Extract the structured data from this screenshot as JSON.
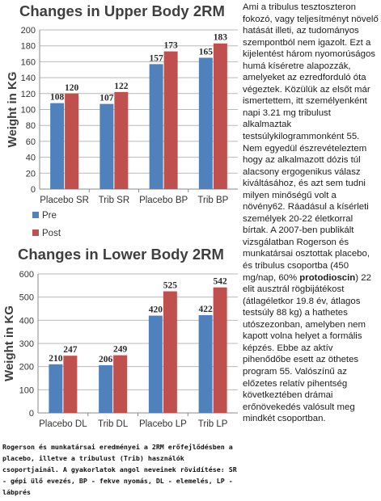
{
  "chart_data": [
    {
      "type": "bar",
      "title": "Changes in Upper Body 2RM",
      "ylabel": "Weight in KG",
      "xlabel": "",
      "categories": [
        "Placebo SR",
        "Trib SR",
        "Placebo BP",
        "Trib BP"
      ],
      "ylim": [
        0,
        200
      ],
      "yticks": [
        0,
        20,
        40,
        60,
        80,
        100,
        120,
        140,
        160,
        180,
        200
      ],
      "grid": true,
      "legend": "bottom-left",
      "series": [
        {
          "name": "Pre",
          "color": "#4f81bd",
          "values": [
            108,
            107,
            157,
            165
          ]
        },
        {
          "name": "Post",
          "color": "#c0504d",
          "values": [
            120,
            122,
            173,
            183
          ]
        }
      ]
    },
    {
      "type": "bar",
      "title": "Changes in Lower Body 2RM",
      "ylabel": "Weight in KG",
      "xlabel": "",
      "categories": [
        "Placebo DL",
        "Trib DL",
        "Placebo LP",
        "Trib LP"
      ],
      "ylim": [
        0,
        600
      ],
      "yticks": [
        0,
        100,
        200,
        300,
        400,
        500,
        600
      ],
      "grid": true,
      "series": [
        {
          "name": "Pre",
          "color": "#4f81bd",
          "values": [
            210,
            206,
            420,
            422
          ]
        },
        {
          "name": "Post",
          "color": "#c0504d",
          "values": [
            247,
            249,
            525,
            542
          ]
        }
      ]
    }
  ],
  "article": {
    "part1": "Ami a tribulus tesztoszteron fokozó, vagy teljesítményt növelő hatását illeti, az tudományos szempontból nem igazolt. Ezt a kijelentést három nyomorúságos humá kíséretre alapozzák, amelyeket az ezredforduló óta végeztek. Közülük az elsőt már ismertettem, itt személyenként napi 3.21 mg tribulust alkalmaztak testsúlykilogrammonként 55. Nem egyedül észrevételeztem hogy az alkalmazott dózis túl alacsony ergogenikus válasz kiváltásához, és azt sem tudni milyen minőségű volt a növény62. Ráadásul a kísérleti személyek 20-22 életkorral bírtak. A 2007-ben publikált vizsgálatban Rogerson és munkatársai osztottak placebo, és tribulus csoportba (450 mg/nap, 60% ",
    "bold": "protodioscin",
    "part2": ") 22 elit ausztrál rögbijátékost (átlagéletkor 19.8 év, átlagos testsúly 88 kg) a hathetes utószezonban, amelyben nem kapott volna helyet a formális képzés. Ebbe az aktív pihenődőbe esett az öthetes program 55. Valószínű az előzetes relatív pihentség következtében drámai erőnövekedés valósult meg mindkét csoportban."
  },
  "caption": "Rogerson és munkatársai eredményei a 2RM erőfejlődésben a placebo, illetve a tribulust (Trib) használók csoportjainál. A gyakorlatok angol neveinek rövidítése: SR - gépi ülő evezés, BP - fekve nyomás, DL - elemelés, LP - lábprés"
}
